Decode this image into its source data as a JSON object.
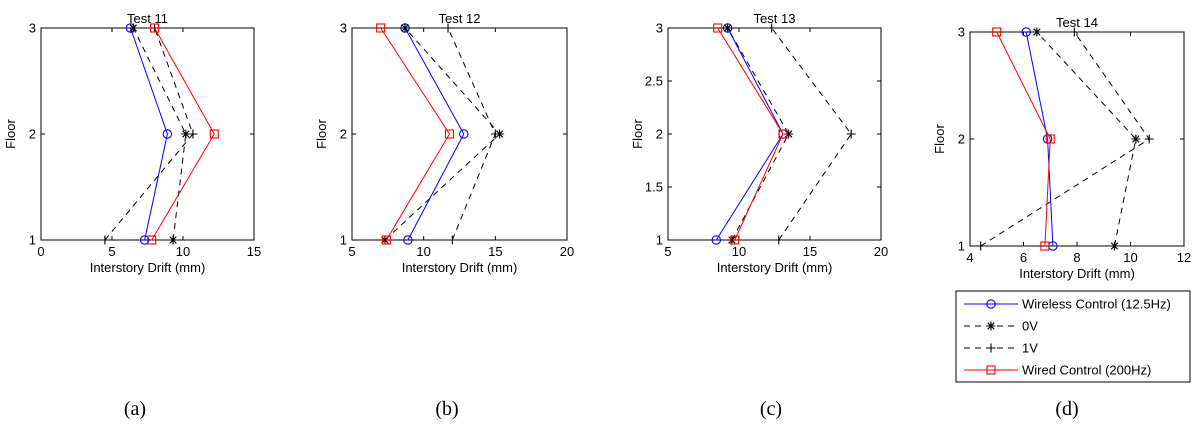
{
  "chart_data": [
    {
      "type": "line",
      "title": "Test 11",
      "xlabel": "Interstory Drift (mm)",
      "ylabel": "Floor",
      "xlim": [
        0,
        15
      ],
      "ylim": [
        1,
        3
      ],
      "xticks": [
        0,
        5,
        10,
        15
      ],
      "yticks": [
        1,
        2,
        3
      ],
      "caption": "(a)",
      "series": [
        {
          "name": "Wireless Control (12.5Hz)",
          "x": [
            7.3,
            8.9,
            6.3
          ],
          "y": [
            1,
            2,
            3
          ]
        },
        {
          "name": "0V",
          "x": [
            9.3,
            10.2,
            6.5
          ],
          "y": [
            1,
            2,
            3
          ]
        },
        {
          "name": "1V",
          "x": [
            4.5,
            10.7,
            8.0
          ],
          "y": [
            1,
            2,
            3
          ]
        },
        {
          "name": "Wired Control (200Hz)",
          "x": [
            7.8,
            12.2,
            8.0
          ],
          "y": [
            1,
            2,
            3
          ]
        }
      ]
    },
    {
      "type": "line",
      "title": "Test 12",
      "xlabel": "Interstory Drift (mm)",
      "ylabel": "Floor",
      "xlim": [
        5,
        20
      ],
      "ylim": [
        1,
        3
      ],
      "xticks": [
        5,
        10,
        15,
        20
      ],
      "yticks": [
        1,
        2,
        3
      ],
      "caption": "(b)",
      "series": [
        {
          "name": "Wireless Control (12.5Hz)",
          "x": [
            8.9,
            12.8,
            8.7
          ],
          "y": [
            1,
            2,
            3
          ]
        },
        {
          "name": "0V",
          "x": [
            7.3,
            15.3,
            8.7
          ],
          "y": [
            1,
            2,
            3
          ]
        },
        {
          "name": "1V",
          "x": [
            12.0,
            15.0,
            11.7
          ],
          "y": [
            1,
            2,
            3
          ]
        },
        {
          "name": "Wired Control (200Hz)",
          "x": [
            7.4,
            11.8,
            7.0
          ],
          "y": [
            1,
            2,
            3
          ]
        }
      ]
    },
    {
      "type": "line",
      "title": "Test 13",
      "xlabel": "Interstory Drift (mm)",
      "ylabel": "Floor",
      "xlim": [
        5,
        20
      ],
      "ylim": [
        1,
        3
      ],
      "xticks": [
        5,
        10,
        15,
        20
      ],
      "yticks": [
        1,
        1.5,
        2,
        2.5,
        3
      ],
      "caption": "(c)",
      "series": [
        {
          "name": "Wireless Control (12.5Hz)",
          "x": [
            8.4,
            13.1,
            9.2
          ],
          "y": [
            1,
            2,
            3
          ]
        },
        {
          "name": "0V",
          "x": [
            9.5,
            13.5,
            9.2
          ],
          "y": [
            1,
            2,
            3
          ]
        },
        {
          "name": "1V",
          "x": [
            12.8,
            17.9,
            12.3
          ],
          "y": [
            1,
            2,
            3
          ]
        },
        {
          "name": "Wired Control (200Hz)",
          "x": [
            9.7,
            13.1,
            8.5
          ],
          "y": [
            1,
            2,
            3
          ]
        }
      ]
    },
    {
      "type": "line",
      "title": "Test 14",
      "xlabel": "Interstory Drift (mm)",
      "ylabel": "Floor",
      "xlim": [
        4,
        12
      ],
      "ylim": [
        1,
        3
      ],
      "xticks": [
        4,
        6,
        8,
        10,
        12
      ],
      "yticks": [
        1,
        2,
        3
      ],
      "caption": "(d)",
      "series": [
        {
          "name": "Wireless Control (12.5Hz)",
          "x": [
            7.1,
            6.9,
            6.1
          ],
          "y": [
            1,
            2,
            3
          ]
        },
        {
          "name": "0V",
          "x": [
            9.4,
            10.2,
            6.5
          ],
          "y": [
            1,
            2,
            3
          ]
        },
        {
          "name": "1V",
          "x": [
            4.4,
            10.7,
            7.9
          ],
          "y": [
            1,
            2,
            3
          ]
        },
        {
          "name": "Wired Control (200Hz)",
          "x": [
            6.8,
            7.0,
            5.0
          ],
          "y": [
            1,
            2,
            3
          ]
        }
      ]
    }
  ],
  "legend": {
    "placement": "below panel (d)",
    "entries": [
      {
        "label": "Wireless Control (12.5Hz)",
        "color": "#0000ff",
        "dash": "solid",
        "marker": "circle"
      },
      {
        "label": "0V",
        "color": "#000000",
        "dash": "dashed",
        "marker": "asterisk"
      },
      {
        "label": "1V",
        "color": "#000000",
        "dash": "dashed",
        "marker": "plus"
      },
      {
        "label": "Wired Control (200Hz)",
        "color": "#ff0000",
        "dash": "solid",
        "marker": "square"
      }
    ]
  }
}
